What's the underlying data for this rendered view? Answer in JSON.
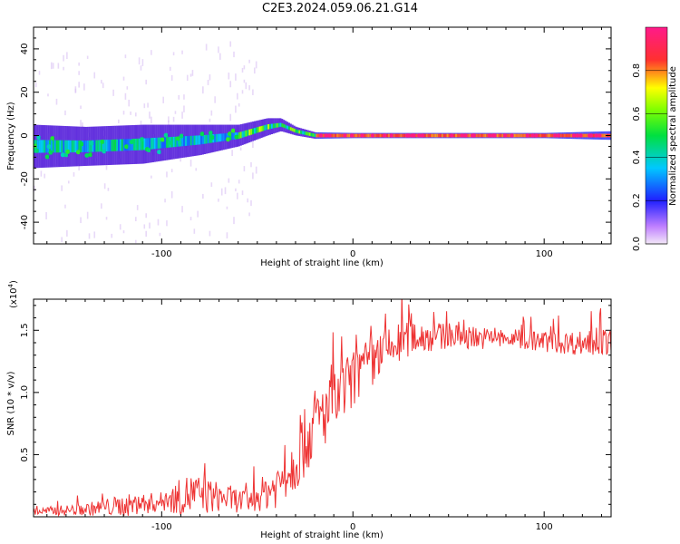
{
  "title": "C2E3.2024.059.06.21.G14",
  "chart_data": [
    {
      "type": "heatmap",
      "xlabel": "Height of straight line (km)",
      "ylabel": "Frequency (Hz)",
      "xlim": [
        -167,
        135
      ],
      "ylim": [
        -50,
        50
      ],
      "xticks": [
        -100,
        0,
        100
      ],
      "yticks": [
        -40,
        -20,
        0,
        20,
        40
      ],
      "colorbar": {
        "label": "Normalized spectral amplitude",
        "range": [
          0,
          1
        ],
        "ticks": [
          "0.0",
          "0.2",
          "0.4",
          "0.6",
          "0.8"
        ]
      },
      "ridge": [
        {
          "x": -167,
          "center": -5,
          "spread": 10
        },
        {
          "x": -140,
          "center": -5,
          "spread": 9
        },
        {
          "x": -110,
          "center": -4,
          "spread": 9
        },
        {
          "x": -80,
          "center": -2,
          "spread": 7
        },
        {
          "x": -60,
          "center": 0,
          "spread": 5
        },
        {
          "x": -45,
          "center": 4,
          "spread": 4
        },
        {
          "x": -38,
          "center": 5,
          "spread": 3
        },
        {
          "x": -30,
          "center": 2,
          "spread": 2
        },
        {
          "x": -20,
          "center": 0,
          "spread": 1.5
        },
        {
          "x": 0,
          "center": 0,
          "spread": 1.2
        },
        {
          "x": 100,
          "center": 0,
          "spread": 1.2
        },
        {
          "x": 135,
          "center": 0,
          "spread": 2
        }
      ]
    },
    {
      "type": "line",
      "xlabel": "Height of straight line (km)",
      "ylabel": "SNR (10 * v/v)",
      "multiplier": "(x10",
      "multiplier_exp": "4",
      "xlim": [
        -167,
        135
      ],
      "ylim": [
        0,
        17500
      ],
      "xticks": [
        -100,
        0,
        100
      ],
      "yticks": [
        5000,
        10000,
        15000
      ],
      "ytick_labels": [
        "0.5",
        "1.0",
        "1.5"
      ],
      "color": "#ee3333",
      "trend": [
        {
          "x": -167,
          "mean": 400,
          "noise": 300
        },
        {
          "x": -140,
          "mean": 600,
          "noise": 500
        },
        {
          "x": -120,
          "mean": 900,
          "noise": 900
        },
        {
          "x": -100,
          "mean": 1200,
          "noise": 800
        },
        {
          "x": -85,
          "mean": 1800,
          "noise": 1800
        },
        {
          "x": -70,
          "mean": 1600,
          "noise": 1200
        },
        {
          "x": -55,
          "mean": 1200,
          "noise": 900
        },
        {
          "x": -40,
          "mean": 2500,
          "noise": 1800
        },
        {
          "x": -30,
          "mean": 4500,
          "noise": 2500
        },
        {
          "x": -20,
          "mean": 7500,
          "noise": 3000
        },
        {
          "x": -10,
          "mean": 9000,
          "noise": 2500
        },
        {
          "x": 0,
          "mean": 11000,
          "noise": 2500
        },
        {
          "x": 15,
          "mean": 13000,
          "noise": 2000
        },
        {
          "x": 30,
          "mean": 14500,
          "noise": 1500
        },
        {
          "x": 50,
          "mean": 14500,
          "noise": 1000
        },
        {
          "x": 80,
          "mean": 14300,
          "noise": 800
        },
        {
          "x": 110,
          "mean": 14000,
          "noise": 900
        },
        {
          "x": 135,
          "mean": 14000,
          "noise": 1200
        }
      ]
    }
  ]
}
